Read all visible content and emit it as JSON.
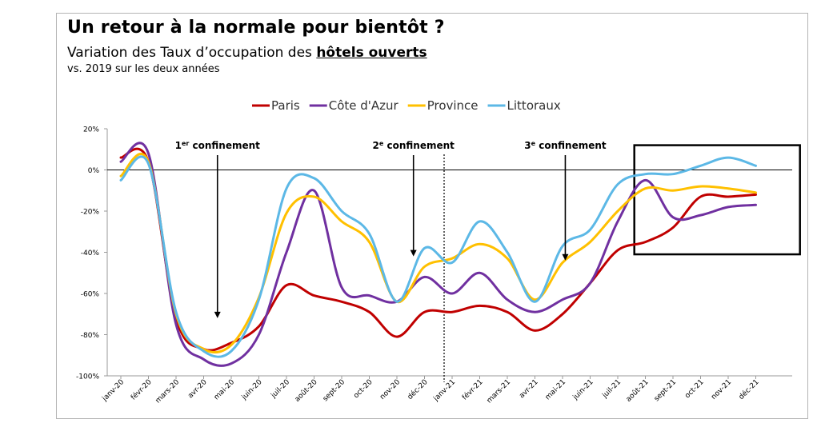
{
  "header": {
    "title": "Un retour à la normale pour bientôt ?",
    "subtitle_prefix": "Variation des Taux d’occupation des ",
    "subtitle_emphasis": "hôtels ouverts",
    "subtitle_line2": "vs. 2019 sur les deux années"
  },
  "chart_data": {
    "type": "line",
    "categories": [
      "janv-20",
      "févr-20",
      "mars-20",
      "avr-20",
      "mai-20",
      "juin-20",
      "juil-20",
      "août-20",
      "sept-20",
      "oct-20",
      "nov-20",
      "déc-20",
      "janv-21",
      "févr-21",
      "mars-21",
      "avr-21",
      "mai-21",
      "juin-21",
      "juil-21",
      "août-21",
      "sept-21",
      "oct-21",
      "nov-21",
      "déc-21"
    ],
    "ylim": [
      -100,
      20
    ],
    "yticks": [
      20,
      0,
      -20,
      -40,
      -60,
      -80,
      -100
    ],
    "ytick_labels": [
      "20%",
      "0%",
      "-20%",
      "-40%",
      "-60%",
      "-80%",
      "-100%"
    ],
    "legend_position": "top",
    "series": [
      {
        "name": "Paris",
        "color": "#c00000",
        "values": [
          6,
          4,
          -72,
          -87,
          -84,
          -76,
          -56,
          -61,
          -64,
          -69,
          -81,
          -69,
          -69,
          -66,
          -69,
          -78,
          -70,
          -55,
          -39,
          -35,
          -28,
          -13,
          -13,
          -12
        ]
      },
      {
        "name": "Côte d'Azur",
        "color": "#7030a0",
        "values": [
          4,
          8,
          -75,
          -92,
          -94,
          -80,
          -40,
          -10,
          -57,
          -61,
          -64,
          -52,
          -60,
          -50,
          -63,
          -69,
          -63,
          -55,
          -25,
          -5,
          -23,
          -22,
          -18,
          -17
        ]
      },
      {
        "name": "Province",
        "color": "#ffc000",
        "values": [
          -3,
          4,
          -70,
          -87,
          -85,
          -62,
          -21,
          -13,
          -25,
          -35,
          -64,
          -47,
          -43,
          -36,
          -43,
          -63,
          -45,
          -35,
          -20,
          -9,
          -10,
          -8,
          -9,
          -11
        ]
      },
      {
        "name": "Littoraux",
        "color": "#5cb8e6",
        "values": [
          -5,
          3,
          -69,
          -88,
          -88,
          -63,
          -9,
          -4,
          -20,
          -31,
          -64,
          -38,
          -45,
          -25,
          -40,
          -64,
          -37,
          -29,
          -7,
          -2,
          -2,
          2,
          6,
          2
        ]
      }
    ],
    "annotations": [
      {
        "label_base": "1",
        "label_sup": "er",
        "label_rest": " confinement",
        "x_index": 3.5,
        "arrow_to": -72
      },
      {
        "label_base": "2",
        "label_sup": "e",
        "label_rest": " confinement",
        "x_index": 10.6,
        "arrow_to": -42
      },
      {
        "label_base": "3",
        "label_sup": "e",
        "label_rest": " confinement",
        "x_index": 16.1,
        "arrow_to": -44
      }
    ],
    "year_divider_index": 12,
    "highlight_box": {
      "from_index": 18.6,
      "to_index": 24.6,
      "y_top": 12,
      "y_bottom": -41
    }
  }
}
